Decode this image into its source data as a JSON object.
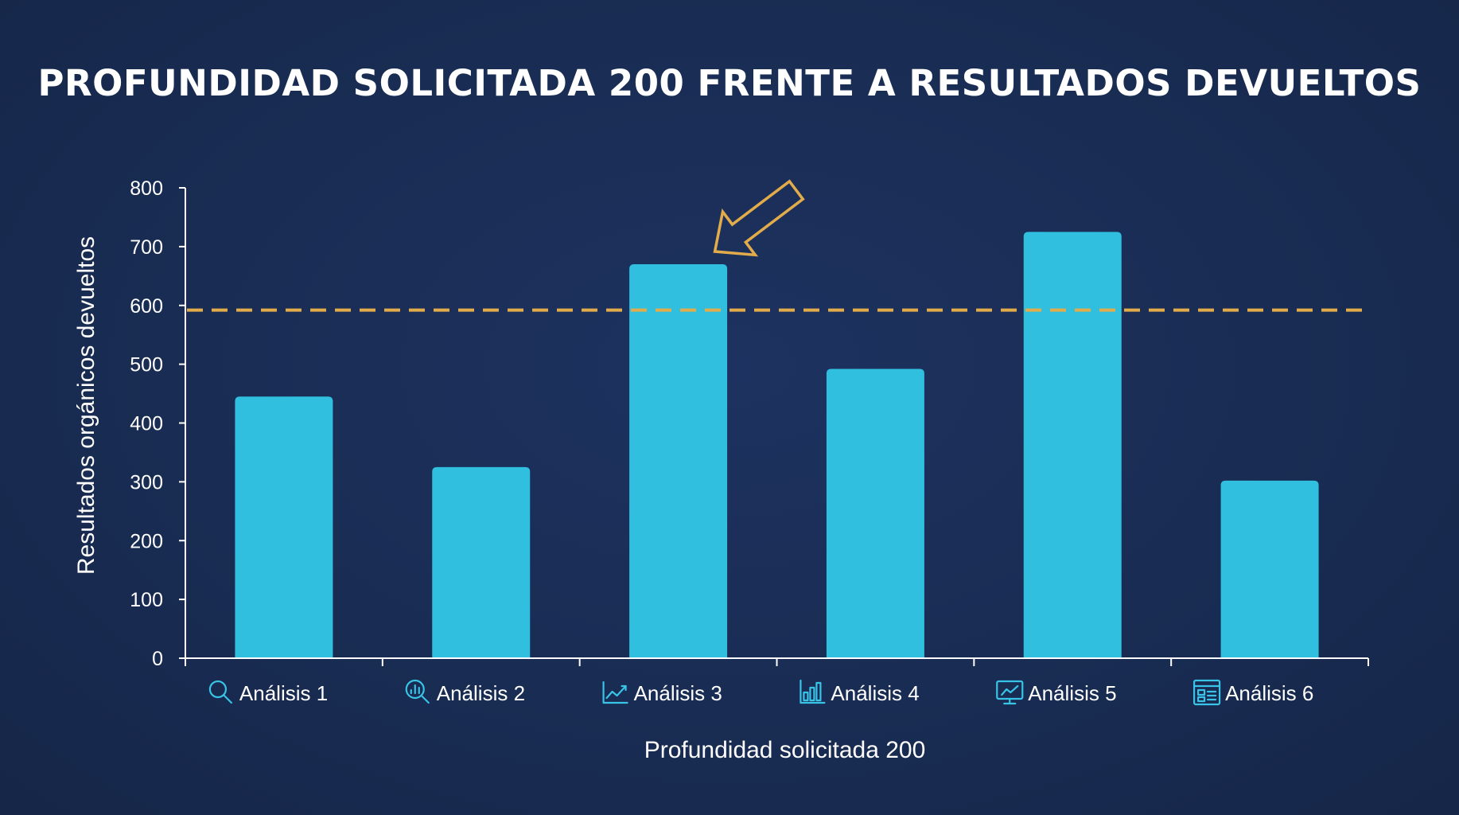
{
  "chart_data": {
    "type": "bar",
    "title": "PROFUNDIDAD SOLICITADA 200 FRENTE A RESULTADOS DEVUELTOS",
    "xlabel": "Profundidad solicitada 200",
    "ylabel": "Resultados orgánicos devueltos",
    "categories": [
      "Análisis 1",
      "Análisis 2",
      "Análisis 3",
      "Análisis 4",
      "Análisis 5",
      "Análisis 6"
    ],
    "category_icons": [
      "search-icon",
      "search-analytics-icon",
      "line-chart-icon",
      "bar-chart-icon",
      "monitor-chart-icon",
      "dashboard-icon"
    ],
    "values": [
      445,
      325,
      670,
      492,
      725,
      302
    ],
    "ylim": [
      0,
      800
    ],
    "yticks": [
      "0",
      "100",
      "200",
      "300",
      "400",
      "500",
      "600",
      "700",
      "800"
    ],
    "reference_line": {
      "value": 592,
      "style": "dashed",
      "color": "#e3ac4a"
    },
    "highlight_annotation": {
      "category_index": 2,
      "type": "arrow",
      "color": "#e3ac4a"
    },
    "grid": false,
    "legend": "none",
    "colors": {
      "background": "#1a2d55",
      "bar": "#31bfe0",
      "axis": "#ffffff",
      "accent": "#e3ac4a",
      "icon": "#39c3e6"
    }
  }
}
